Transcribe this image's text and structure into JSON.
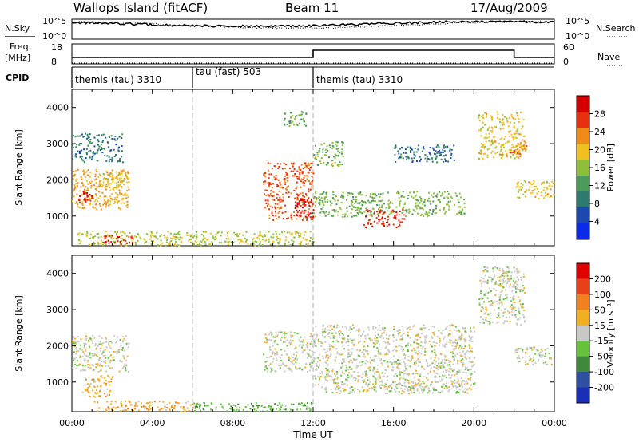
{
  "header": {
    "site": "Wallops Island (fitACF)",
    "beam": "Beam 11",
    "date": "17/Aug/2009"
  },
  "nsky_panel": {
    "left_label": "N.Sky",
    "right_label": "N.Search",
    "left_ticks": [
      "10^5",
      "10^0"
    ],
    "right_ticks": [
      "10^5",
      "10^0"
    ]
  },
  "freq_panel": {
    "left_label_1": "Freq.",
    "left_label_2": "[MHz]",
    "right_label": "Nave",
    "left_ticks": [
      "18",
      "8"
    ],
    "right_ticks": [
      "60",
      "0"
    ]
  },
  "cpid": {
    "label": "CPID",
    "segments": [
      {
        "name": "themis (tau) 3310",
        "start_h": 0,
        "end_h": 6
      },
      {
        "name": "tau (fast) 503",
        "start_h": 6,
        "end_h": 12
      },
      {
        "name": "themis (tau) 3310",
        "start_h": 12,
        "end_h": 24
      }
    ]
  },
  "power_panel": {
    "ylabel": "Slant Range [km]",
    "yticks": [
      "4000",
      "3000",
      "2000",
      "1000"
    ],
    "colorbar_label": "Power [dB]",
    "colorbar_ticks": [
      "28",
      "24",
      "20",
      "16",
      "12",
      "8",
      "4"
    ],
    "colors": [
      "#0a2be8",
      "#1c48b0",
      "#2f7a6e",
      "#4c9a5a",
      "#8fbf3a",
      "#f0c020",
      "#f08a18",
      "#e83010",
      "#d40000"
    ]
  },
  "velocity_panel": {
    "ylabel": "Slant Range [km]",
    "yticks": [
      "4000",
      "3000",
      "2000",
      "1000"
    ],
    "colorbar_label": "Velocity [m s⁻¹]",
    "colorbar_ticks": [
      "200",
      "100",
      "50",
      "15",
      "-15",
      "-50",
      "-100",
      "-200"
    ],
    "colors": [
      "#1a2fb8",
      "#2f4fa0",
      "#3f8a3a",
      "#66c23a",
      "#c8c8c4",
      "#f0b020",
      "#f08020",
      "#e84018",
      "#e00000"
    ]
  },
  "xaxis": {
    "label": "Time UT",
    "ticks": [
      "00:00",
      "04:00",
      "08:00",
      "12:00",
      "16:00",
      "20:00",
      "00:00"
    ]
  },
  "chart_data": [
    {
      "type": "heatmap",
      "title": "",
      "xlabel": "Time UT",
      "ylabel": "Slant Range [km]",
      "xlim": [
        0,
        24
      ],
      "ylim": [
        180,
        4500
      ],
      "colorbar": "Power [dB]",
      "color_range": [
        0,
        30
      ],
      "regions": [
        {
          "t": [
            0.0,
            2.8
          ],
          "r": [
            1200,
            2300
          ],
          "value": 20
        },
        {
          "t": [
            0.0,
            2.5
          ],
          "r": [
            2500,
            3300
          ],
          "value": 8
        },
        {
          "t": [
            1.3,
            2.8
          ],
          "r": [
            1800,
            2200
          ],
          "value": 18
        },
        {
          "t": [
            0.3,
            1.0
          ],
          "r": [
            1400,
            1700
          ],
          "value": 26
        },
        {
          "t": [
            0.2,
            12.0
          ],
          "r": [
            200,
            600
          ],
          "value": 16
        },
        {
          "t": [
            1.5,
            3.0
          ],
          "r": [
            250,
            500
          ],
          "value": 26
        },
        {
          "t": [
            9.5,
            12.0
          ],
          "r": [
            900,
            2500
          ],
          "value": 24
        },
        {
          "t": [
            11.0,
            12.0
          ],
          "r": [
            1000,
            1500
          ],
          "value": 28
        },
        {
          "t": [
            10.5,
            11.8
          ],
          "r": [
            3500,
            3900
          ],
          "value": 12
        },
        {
          "t": [
            12.0,
            13.5
          ],
          "r": [
            2400,
            3100
          ],
          "value": 14
        },
        {
          "t": [
            12.0,
            19.5
          ],
          "r": [
            1000,
            1700
          ],
          "value": 14
        },
        {
          "t": [
            14.5,
            16.5
          ],
          "r": [
            700,
            1200
          ],
          "value": 26
        },
        {
          "t": [
            16.0,
            19.0
          ],
          "r": [
            2500,
            3000
          ],
          "value": 8
        },
        {
          "t": [
            20.2,
            22.5
          ],
          "r": [
            2600,
            3900
          ],
          "value": 18
        },
        {
          "t": [
            21.8,
            22.6
          ],
          "r": [
            2700,
            3100
          ],
          "value": 22
        },
        {
          "t": [
            22.0,
            24.0
          ],
          "r": [
            1500,
            2000
          ],
          "value": 18
        }
      ]
    },
    {
      "type": "heatmap",
      "title": "",
      "xlabel": "Time UT",
      "ylabel": "Slant Range [km]",
      "xlim": [
        0,
        24
      ],
      "ylim": [
        180,
        4500
      ],
      "colorbar": "Velocity [m s-1]",
      "color_range": [
        -200,
        200
      ],
      "regions": [
        {
          "t": [
            0.0,
            2.8
          ],
          "r": [
            1300,
            2300
          ],
          "value": 0
        },
        {
          "t": [
            0.5,
            2.0
          ],
          "r": [
            600,
            1200
          ],
          "value": 50
        },
        {
          "t": [
            1.0,
            6.0
          ],
          "r": [
            200,
            500
          ],
          "value": 50
        },
        {
          "t": [
            6.0,
            12.0
          ],
          "r": [
            200,
            450
          ],
          "value": -50
        },
        {
          "t": [
            9.5,
            12.0
          ],
          "r": [
            1300,
            2400
          ],
          "value": 0
        },
        {
          "t": [
            12.0,
            20.0
          ],
          "r": [
            700,
            2600
          ],
          "value": 0
        },
        {
          "t": [
            15.5,
            17.5
          ],
          "r": [
            700,
            1000
          ],
          "value": 0
        },
        {
          "t": [
            20.2,
            22.5
          ],
          "r": [
            2600,
            4200
          ],
          "value": 0
        },
        {
          "t": [
            22.0,
            24.0
          ],
          "r": [
            1500,
            2000
          ],
          "value": 0
        }
      ]
    }
  ]
}
